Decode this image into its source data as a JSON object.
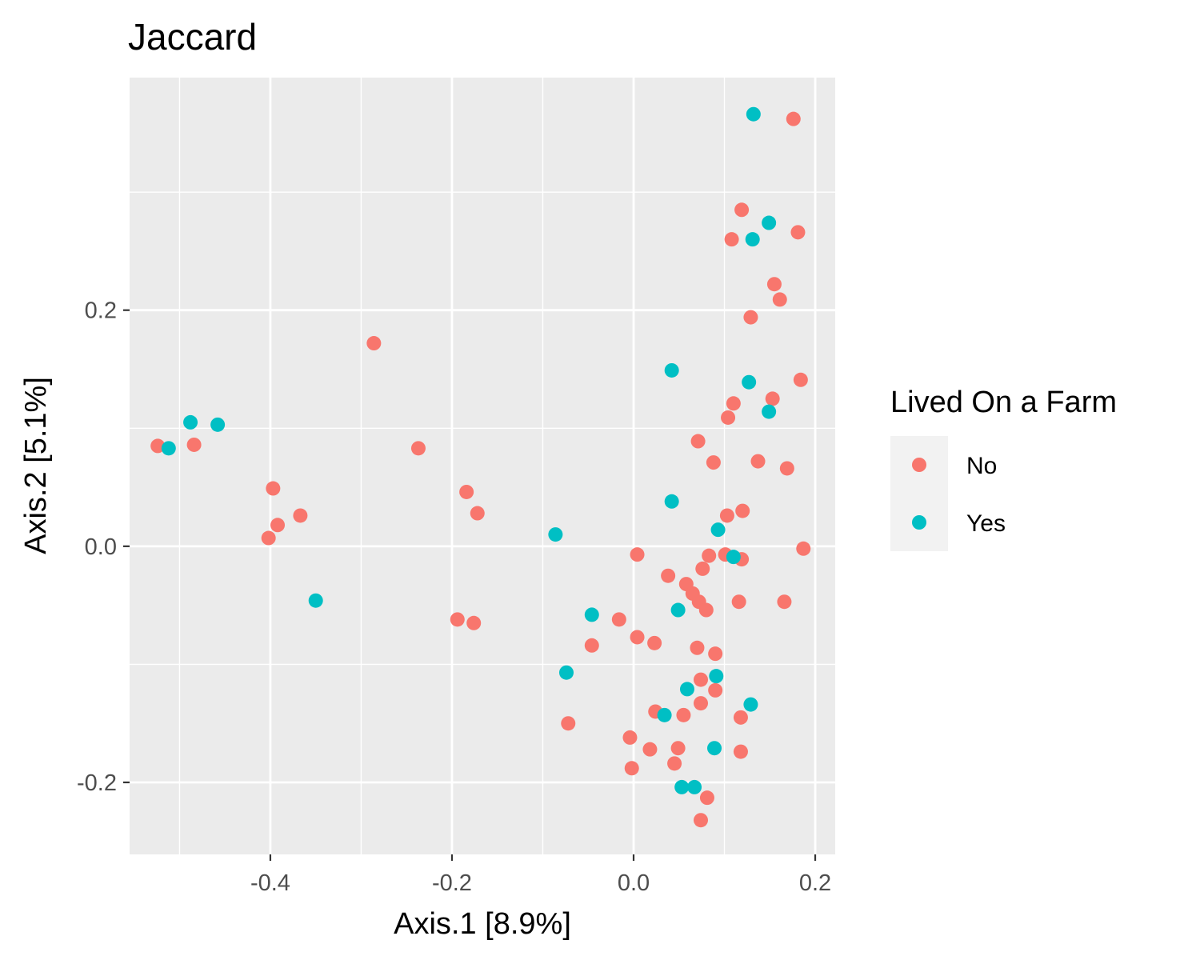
{
  "chart_data": {
    "type": "scatter",
    "title": "Jaccard",
    "xlabel": "Axis.1   [8.9%]",
    "ylabel": "Axis.2   [5.1%]",
    "xlim": [
      -0.555,
      0.222
    ],
    "ylim": [
      -0.261,
      0.397
    ],
    "x_ticks": [
      -0.4,
      -0.2,
      0.0,
      0.2
    ],
    "x_tick_labels": [
      "-0.4",
      "-0.2",
      "0.0",
      "0.2"
    ],
    "y_ticks": [
      0.2,
      0.0,
      -0.2
    ],
    "y_tick_labels": [
      "0.2",
      "0.0",
      "-0.2"
    ],
    "grid": true,
    "legend": {
      "title": "Lived On a Farm",
      "position": "right"
    },
    "series": [
      {
        "name": "No",
        "color": "#F8766D",
        "points": [
          [
            0.176,
            0.362
          ],
          [
            0.119,
            0.285
          ],
          [
            0.108,
            0.26
          ],
          [
            0.181,
            0.266
          ],
          [
            0.155,
            0.222
          ],
          [
            0.161,
            0.209
          ],
          [
            0.129,
            0.194
          ],
          [
            -0.286,
            0.172
          ],
          [
            0.184,
            0.141
          ],
          [
            0.153,
            0.125
          ],
          [
            0.11,
            0.121
          ],
          [
            0.104,
            0.109
          ],
          [
            -0.524,
            0.085
          ],
          [
            -0.484,
            0.086
          ],
          [
            -0.237,
            0.083
          ],
          [
            0.071,
            0.089
          ],
          [
            0.088,
            0.071
          ],
          [
            0.137,
            0.072
          ],
          [
            0.169,
            0.066
          ],
          [
            -0.397,
            0.049
          ],
          [
            -0.184,
            0.046
          ],
          [
            -0.172,
            0.028
          ],
          [
            -0.367,
            0.026
          ],
          [
            -0.392,
            0.018
          ],
          [
            -0.402,
            0.007
          ],
          [
            0.12,
            0.03
          ],
          [
            0.103,
            0.026
          ],
          [
            0.187,
            -0.002
          ],
          [
            0.004,
            -0.007
          ],
          [
            0.083,
            -0.008
          ],
          [
            0.101,
            -0.007
          ],
          [
            0.119,
            -0.011
          ],
          [
            0.076,
            -0.019
          ],
          [
            0.038,
            -0.025
          ],
          [
            0.058,
            -0.032
          ],
          [
            0.065,
            -0.04
          ],
          [
            0.072,
            -0.047
          ],
          [
            0.08,
            -0.054
          ],
          [
            0.116,
            -0.047
          ],
          [
            0.166,
            -0.047
          ],
          [
            -0.194,
            -0.062
          ],
          [
            -0.176,
            -0.065
          ],
          [
            -0.016,
            -0.062
          ],
          [
            0.004,
            -0.077
          ],
          [
            0.023,
            -0.082
          ],
          [
            -0.046,
            -0.084
          ],
          [
            0.07,
            -0.086
          ],
          [
            0.09,
            -0.091
          ],
          [
            0.074,
            -0.113
          ],
          [
            0.09,
            -0.122
          ],
          [
            0.074,
            -0.133
          ],
          [
            0.024,
            -0.14
          ],
          [
            0.055,
            -0.143
          ],
          [
            0.118,
            -0.145
          ],
          [
            -0.072,
            -0.15
          ],
          [
            -0.004,
            -0.162
          ],
          [
            0.018,
            -0.172
          ],
          [
            0.049,
            -0.171
          ],
          [
            0.118,
            -0.174
          ],
          [
            0.045,
            -0.184
          ],
          [
            -0.002,
            -0.188
          ],
          [
            0.081,
            -0.213
          ],
          [
            0.074,
            -0.232
          ]
        ]
      },
      {
        "name": "Yes",
        "color": "#00BFC4",
        "points": [
          [
            0.132,
            0.366
          ],
          [
            0.149,
            0.274
          ],
          [
            0.131,
            0.26
          ],
          [
            0.042,
            0.149
          ],
          [
            0.127,
            0.139
          ],
          [
            0.149,
            0.114
          ],
          [
            -0.488,
            0.105
          ],
          [
            -0.458,
            0.103
          ],
          [
            -0.512,
            0.083
          ],
          [
            0.042,
            0.038
          ],
          [
            0.093,
            0.014
          ],
          [
            -0.086,
            0.01
          ],
          [
            0.11,
            -0.009
          ],
          [
            -0.35,
            -0.046
          ],
          [
            0.049,
            -0.054
          ],
          [
            -0.046,
            -0.058
          ],
          [
            -0.074,
            -0.107
          ],
          [
            0.091,
            -0.11
          ],
          [
            0.059,
            -0.121
          ],
          [
            0.129,
            -0.134
          ],
          [
            0.034,
            -0.143
          ],
          [
            0.089,
            -0.171
          ],
          [
            0.053,
            -0.204
          ],
          [
            0.067,
            -0.204
          ]
        ]
      }
    ]
  }
}
